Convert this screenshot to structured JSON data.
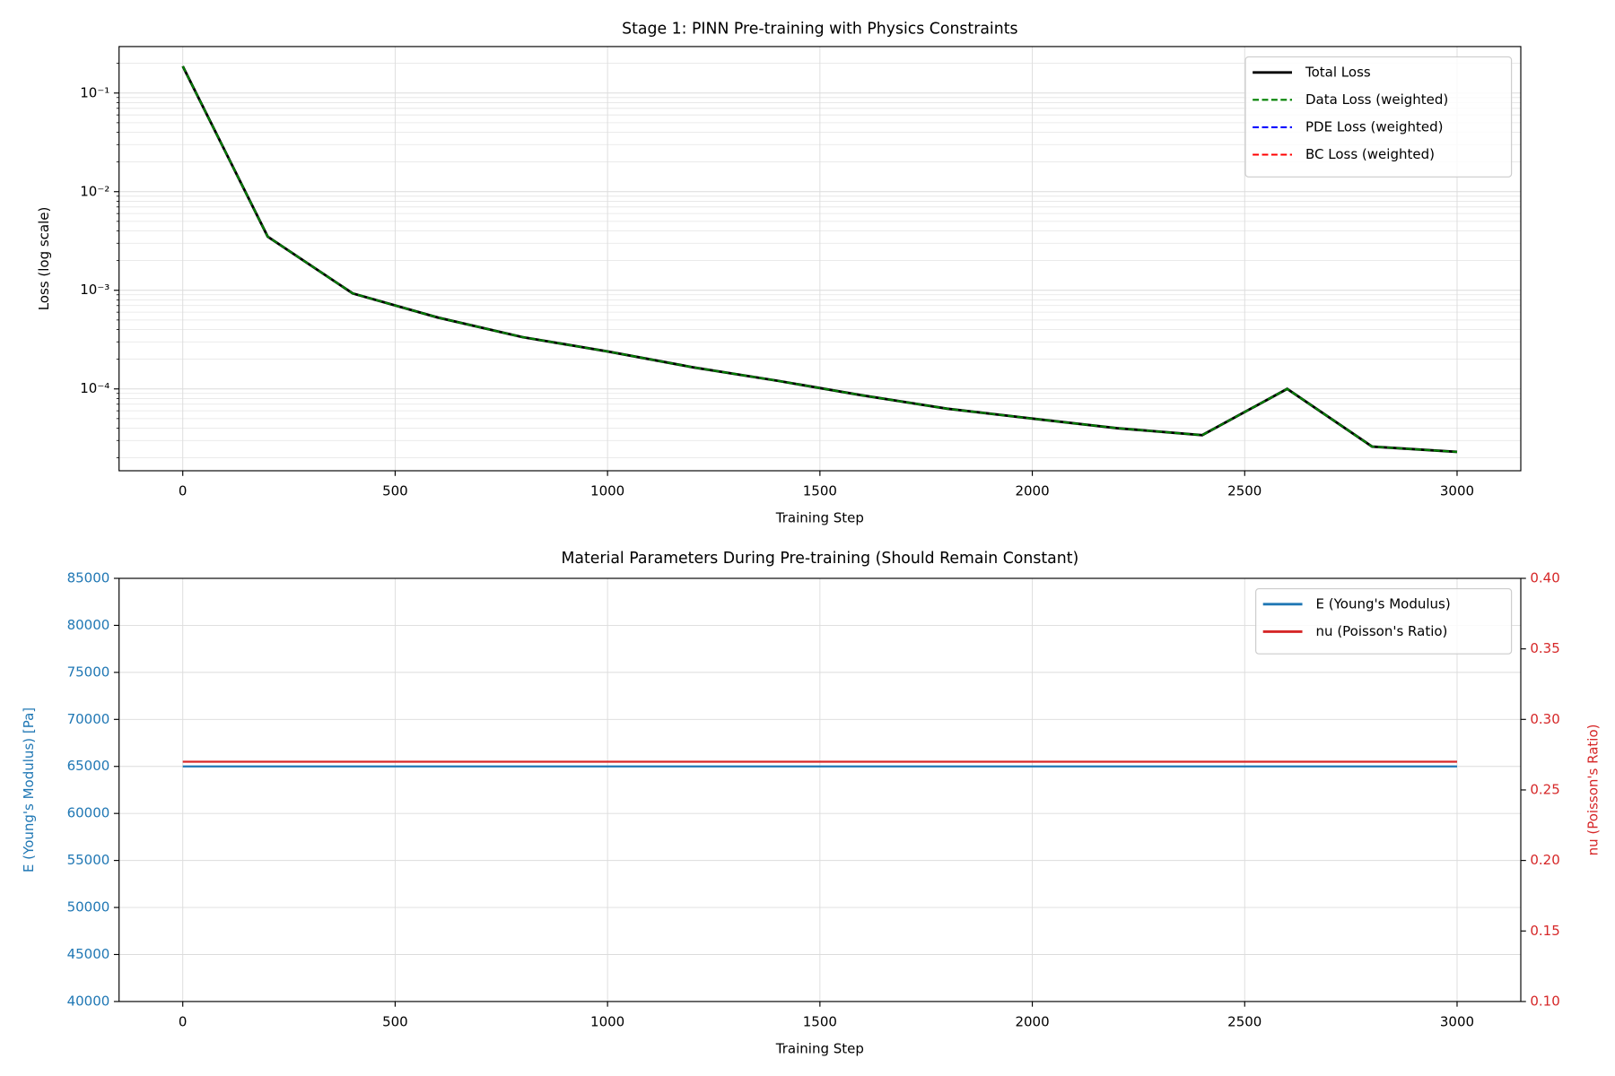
{
  "chart_data": [
    {
      "type": "line",
      "title": "Stage 1: PINN Pre-training with Physics Constraints",
      "xlabel": "Training Step",
      "ylabel": "Loss (log scale)",
      "x": [
        0,
        200,
        400,
        600,
        800,
        1000,
        1200,
        1400,
        1600,
        1800,
        2000,
        2200,
        2400,
        2600,
        2800,
        3000
      ],
      "series": [
        {
          "name": "Total Loss",
          "color": "#000000",
          "linestyle": "solid",
          "values": [
            0.187,
            0.0035,
            0.00093,
            0.00053,
            0.000335,
            0.00024,
            0.000166,
            0.000121,
            8.6e-05,
            6.3e-05,
            5e-05,
            4e-05,
            3.4e-05,
            0.0001,
            2.6e-05,
            2.3e-05
          ]
        },
        {
          "name": "Data Loss (weighted)",
          "color": "#008000",
          "linestyle": "dashed",
          "values": [
            0.187,
            0.0035,
            0.00093,
            0.00053,
            0.000335,
            0.00024,
            0.000166,
            0.000121,
            8.6e-05,
            6.3e-05,
            5e-05,
            4e-05,
            3.4e-05,
            0.0001,
            2.6e-05,
            2.3e-05
          ]
        },
        {
          "name": "PDE Loss (weighted)",
          "color": "#0000ff",
          "linestyle": "dashed",
          "values": [
            null,
            null,
            null,
            null,
            null,
            null,
            null,
            null,
            null,
            null,
            null,
            null,
            null,
            null,
            null,
            null
          ]
        },
        {
          "name": "BC Loss (weighted)",
          "color": "#ff0000",
          "linestyle": "dashed",
          "values": [
            null,
            null,
            null,
            null,
            null,
            null,
            null,
            null,
            null,
            null,
            null,
            null,
            null,
            null,
            null,
            null
          ]
        }
      ],
      "xlim": [
        -150,
        3150
      ],
      "xticks": [
        0,
        500,
        1000,
        1500,
        2000,
        2500,
        3000
      ],
      "yscale": "log",
      "ylim": [
        1.48e-05,
        0.296
      ],
      "yticks": [
        {
          "value": 0.0001,
          "label": "10⁻⁴"
        },
        {
          "value": 0.001,
          "label": "10⁻³"
        },
        {
          "value": 0.01,
          "label": "10⁻²"
        },
        {
          "value": 0.1,
          "label": "10⁻¹"
        }
      ],
      "grid": true,
      "minor_grid": true,
      "legend": "upper right"
    },
    {
      "type": "line",
      "title": "Material Parameters During Pre-training (Should Remain Constant)",
      "xlabel": "Training Step",
      "ylabel": "E (Young's Modulus) [Pa]",
      "y2label": "nu (Poisson's Ratio)",
      "x": [
        0,
        200,
        400,
        600,
        800,
        1000,
        1200,
        1400,
        1600,
        1800,
        2000,
        2200,
        2400,
        2600,
        2800,
        3000
      ],
      "series": [
        {
          "name": "E (Young's Modulus)",
          "color": "#1f77b4",
          "linestyle": "solid",
          "axis": "y",
          "values": [
            65000,
            65000,
            65000,
            65000,
            65000,
            65000,
            65000,
            65000,
            65000,
            65000,
            65000,
            65000,
            65000,
            65000,
            65000,
            65000
          ]
        },
        {
          "name": "nu (Poisson's Ratio)",
          "color": "#d62728",
          "linestyle": "solid",
          "axis": "y2",
          "values": [
            0.27,
            0.27,
            0.27,
            0.27,
            0.27,
            0.27,
            0.27,
            0.27,
            0.27,
            0.27,
            0.27,
            0.27,
            0.27,
            0.27,
            0.27,
            0.27
          ]
        }
      ],
      "xlim": [
        -150,
        3150
      ],
      "xticks": [
        0,
        500,
        1000,
        1500,
        2000,
        2500,
        3000
      ],
      "ylim": [
        40000,
        85000
      ],
      "yticks": [
        40000,
        45000,
        50000,
        55000,
        60000,
        65000,
        70000,
        75000,
        80000,
        85000
      ],
      "y2lim": [
        0.1,
        0.4
      ],
      "y2ticks": [
        {
          "value": 0.1,
          "label": "0.10"
        },
        {
          "value": 0.15,
          "label": "0.15"
        },
        {
          "value": 0.2,
          "label": "0.20"
        },
        {
          "value": 0.25,
          "label": "0.25"
        },
        {
          "value": 0.3,
          "label": "0.30"
        },
        {
          "value": 0.35,
          "label": "0.35"
        },
        {
          "value": 0.4,
          "label": "0.40"
        }
      ],
      "grid": true,
      "legend": "upper right"
    }
  ]
}
